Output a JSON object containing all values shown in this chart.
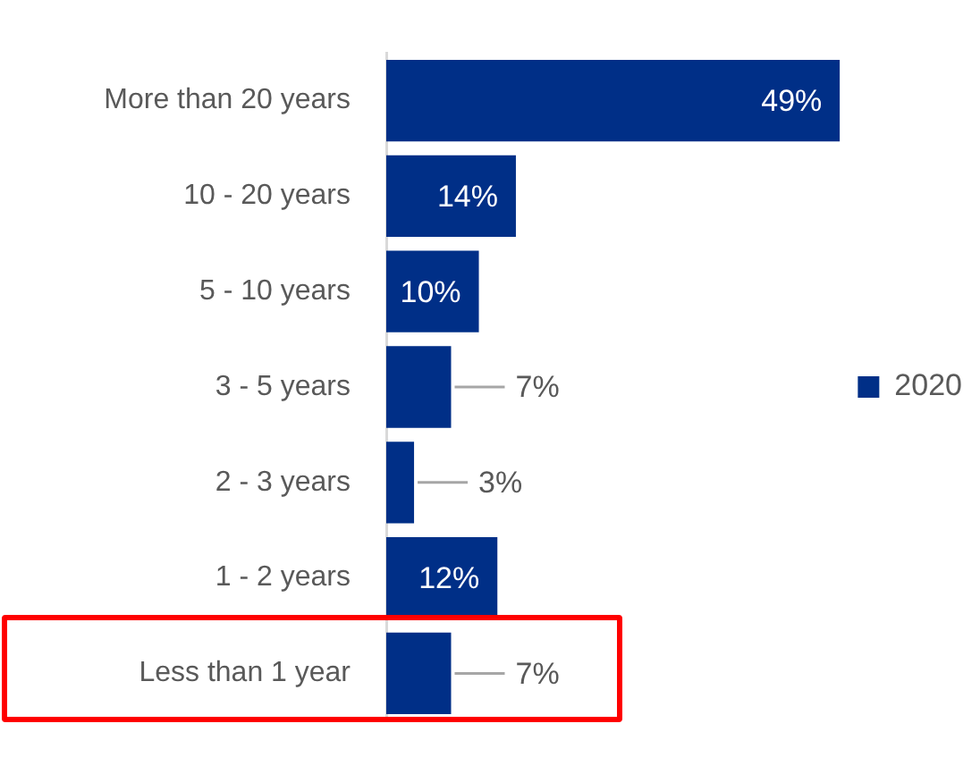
{
  "chart_data": {
    "type": "bar",
    "orientation": "horizontal",
    "categories": [
      "More than 20 years",
      "10 - 20 years",
      "5 - 10 years",
      "3 - 5 years",
      "2 - 3 years",
      "1 - 2 years",
      "Less than 1 year"
    ],
    "series": [
      {
        "name": "2020",
        "color": "#002f87",
        "values": [
          49,
          14,
          10,
          7,
          3,
          12,
          7
        ],
        "value_labels": [
          "49%",
          "14%",
          "10%",
          "7%",
          "3%",
          "12%",
          "7%"
        ]
      }
    ],
    "legend": "right",
    "grid": false
  }
}
